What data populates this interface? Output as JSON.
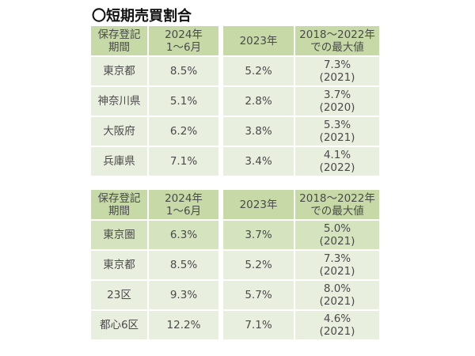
{
  "title": "〇短期売買割合",
  "headers": [
    "保存登記\n期間",
    "2024年\n1～6月",
    "2023年",
    "2018～2022年\nでの最大値"
  ],
  "table1": [
    {
      "region": "東京都",
      "h1_2024": "8.5%",
      "y2023": "5.2%",
      "max": "7.3%\n(2021)"
    },
    {
      "region": "神奈川県",
      "h1_2024": "5.1%",
      "y2023": "2.8%",
      "max": "3.7%\n(2020)"
    },
    {
      "region": "大阪府",
      "h1_2024": "6.2%",
      "y2023": "3.8%",
      "max": "5.3%\n(2021)"
    },
    {
      "region": "兵庫県",
      "h1_2024": "7.1%",
      "y2023": "3.4%",
      "max": "4.1%\n(2022)"
    }
  ],
  "table2": [
    {
      "region": "東京圏",
      "h1_2024": "6.3%",
      "y2023": "3.7%",
      "max": "5.0%\n(2021)"
    },
    {
      "region": "東京都",
      "h1_2024": "8.5%",
      "y2023": "5.2%",
      "max": "7.3%\n(2021)"
    },
    {
      "region": "23区",
      "h1_2024": "9.3%",
      "y2023": "5.7%",
      "max": "8.0%\n(2021)"
    },
    {
      "region": "都心6区",
      "h1_2024": "12.2%",
      "y2023": "7.1%",
      "max": "4.6%\n(2021)"
    }
  ],
  "colors": {
    "header": "#c6d9a7",
    "row": "#e9efdf",
    "highlight_row": "#d5e3bf"
  }
}
